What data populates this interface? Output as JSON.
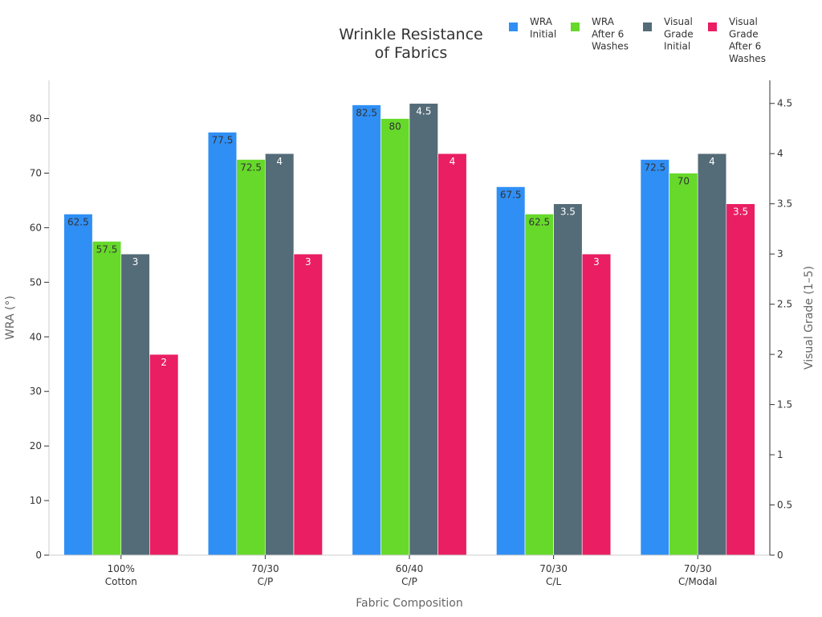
{
  "chart_data": {
    "type": "bar",
    "title": [
      "Wrinkle Resistance",
      "of Fabrics"
    ],
    "xlabel": "Fabric Composition",
    "ylabel": "WRA (°)",
    "y2label": "Visual Grade (1–5)",
    "categories": [
      [
        "100%",
        "Cotton"
      ],
      [
        "70/30",
        "C/P"
      ],
      [
        "60/40",
        "C/P"
      ],
      [
        "70/30",
        "C/L"
      ],
      [
        "70/30",
        "C/Modal"
      ]
    ],
    "ylim": [
      0,
      87
    ],
    "y2lim": [
      0,
      4.73
    ],
    "yticks": [
      0,
      10,
      20,
      30,
      40,
      50,
      60,
      70,
      80
    ],
    "y2ticks": [
      0,
      0.5,
      1,
      1.5,
      2,
      2.5,
      3,
      3.5,
      4,
      4.5
    ],
    "series": [
      {
        "name": [
          "WRA",
          "Initial"
        ],
        "axis": "left",
        "color": "#2f8ff5",
        "label_color": "#333333",
        "values": [
          62.5,
          77.5,
          82.5,
          67.5,
          72.5
        ]
      },
      {
        "name": [
          "WRA",
          "After 6",
          "Washes"
        ],
        "axis": "left",
        "color": "#66d92a",
        "label_color": "#333333",
        "values": [
          57.5,
          72.5,
          80,
          62.5,
          70
        ]
      },
      {
        "name": [
          "Visual",
          "Grade",
          "Initial"
        ],
        "axis": "right",
        "color": "#546b78",
        "label_color": "#ffffff",
        "values": [
          3,
          4,
          4.5,
          3.5,
          4
        ]
      },
      {
        "name": [
          "Visual",
          "Grade",
          "After 6",
          "Washes"
        ],
        "axis": "right",
        "color": "#e91e63",
        "label_color": "#ffffff",
        "values": [
          2,
          3,
          4,
          3,
          3.5
        ]
      }
    ],
    "legend_position": "top-right",
    "grid": false
  }
}
